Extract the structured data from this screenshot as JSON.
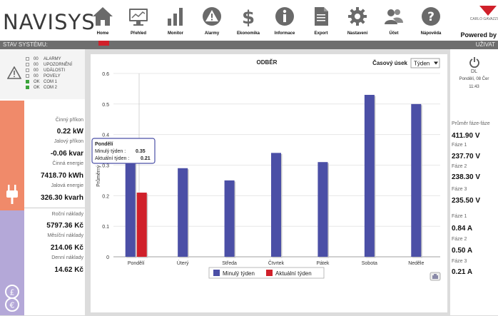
{
  "app": {
    "logo_text": "NAVISYS"
  },
  "nav": [
    {
      "label": "Home",
      "icon": "home-icon"
    },
    {
      "label": "Přehled",
      "icon": "monitor-icon"
    },
    {
      "label": "Monitor",
      "icon": "bar-chart-icon"
    },
    {
      "label": "Alarmy",
      "icon": "warning-icon"
    },
    {
      "label": "Ekonomika",
      "icon": "dollar-icon"
    },
    {
      "label": "Informace",
      "icon": "info-icon"
    },
    {
      "label": "Export",
      "icon": "document-icon"
    },
    {
      "label": "Nastavení",
      "icon": "gear-icon"
    },
    {
      "label": "Účet",
      "icon": "users-icon"
    },
    {
      "label": "Nápověda",
      "icon": "help-icon"
    }
  ],
  "brand": {
    "name": "CARLO GAVAZZI",
    "powered": "Powered by"
  },
  "subbar": {
    "left_title": "STAV SYSTÉMU:",
    "right_title": "UŽIVAT"
  },
  "status": [
    {
      "state": "00",
      "label": "ALARMY",
      "ok": false
    },
    {
      "state": "00",
      "label": "UPOZORNĚNÍ",
      "ok": false
    },
    {
      "state": "00",
      "label": "UDÁLOSTI",
      "ok": false
    },
    {
      "state": "00",
      "label": "POVELY",
      "ok": false
    },
    {
      "state": "OK",
      "label": "COM 1",
      "ok": true
    },
    {
      "state": "OK",
      "label": "COM 2",
      "ok": true
    }
  ],
  "metrics": {
    "cinny_prikon_label": "Činný příkon",
    "cinny_prikon": "0.22 kW",
    "jalovy_prikon_label": "Jalový příkon",
    "jalovy_prikon": "-0.06 kvar",
    "cinna_energie_label": "Činná energie",
    "cinna_energie": "7418.70 kWh",
    "jalova_energie_label": "Jalová energie",
    "jalova_energie": "326.30 kvarh",
    "rocni_label": "Roční náklady",
    "rocni": "5797.36 Kč",
    "mesicni_label": "Měsíční náklady",
    "mesicni": "214.06 Kč",
    "denni_label": "Denní náklady",
    "denni": "14.62 Kč"
  },
  "right": {
    "user_name": "DL",
    "date": "Pondělí, 08 Čer",
    "time": "11:43",
    "avg_label": "Průměr fáze-fáze",
    "avg_value": "411.90 V",
    "phases_v": [
      {
        "label": "Fáze 1",
        "value": "237.70 V"
      },
      {
        "label": "Fáze 2",
        "value": "238.30 V"
      },
      {
        "label": "Fáze 3",
        "value": "235.50 V"
      }
    ],
    "phases_a": [
      {
        "label": "Fáze 1",
        "value": "0.84 A"
      },
      {
        "label": "Fáze 2",
        "value": "0.50 A"
      },
      {
        "label": "Fáze 3",
        "value": "0.21 A"
      }
    ]
  },
  "controls": {
    "period_label": "Časový úsek",
    "period_value": "Týden"
  },
  "tooltip": {
    "day": "Pondělí",
    "l1": "Minulý týden :",
    "v1": "0.35",
    "l2": "Aktuální týden :",
    "v2": "0.21"
  },
  "colors": {
    "series_prev": "#4b4fa6",
    "series_curr": "#d0202a"
  },
  "chart_data": {
    "type": "bar",
    "title": "ODBĚR",
    "ylabel": "Průměrný příkon",
    "categories": [
      "Pondělí",
      "Úterý",
      "Středa",
      "Čtvrtek",
      "Pátek",
      "Sobota",
      "Neděle"
    ],
    "series": [
      {
        "name": "Minulý týden",
        "values": [
          0.35,
          0.29,
          0.25,
          0.34,
          0.31,
          0.53,
          0.5
        ]
      },
      {
        "name": "Aktuální týden",
        "values": [
          0.21,
          null,
          null,
          null,
          null,
          null,
          null
        ]
      }
    ],
    "ylim": [
      0,
      0.6
    ],
    "yticks": [
      "0",
      "0.1",
      "0.2",
      "0.3",
      "0.4",
      "0.5",
      "0.6"
    ],
    "grid": true,
    "legend": "bottom"
  }
}
